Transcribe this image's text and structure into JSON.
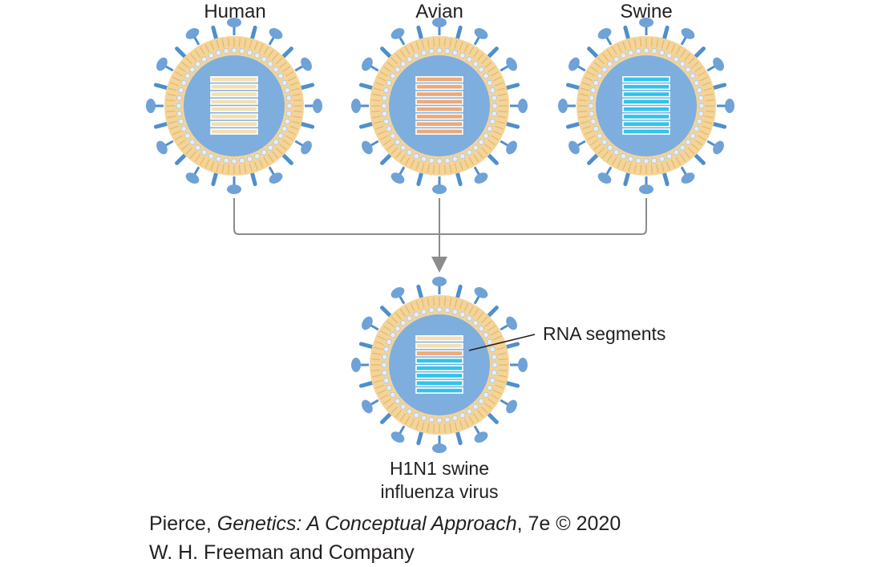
{
  "viruses": [
    {
      "label": "Human",
      "segments": [
        "tan",
        "tan",
        "tan",
        "tan",
        "tan",
        "tan",
        "tan",
        "tan"
      ]
    },
    {
      "label": "Avian",
      "segments": [
        "orange",
        "orange",
        "orange",
        "orange",
        "orange",
        "orange",
        "orange",
        "orange"
      ]
    },
    {
      "label": "Swine",
      "segments": [
        "cyan",
        "cyan",
        "cyan",
        "cyan",
        "cyan",
        "cyan",
        "cyan",
        "cyan"
      ]
    }
  ],
  "result": {
    "label_line1": "H1N1 swine",
    "label_line2": "influenza virus",
    "segments": [
      "tan",
      "tan",
      "orange",
      "cyan",
      "cyan",
      "cyan",
      "cyan",
      "cyan"
    ],
    "callout": "RNA segments"
  },
  "colors": {
    "core": "#7eaedd",
    "spike": "#4f8fcb",
    "spike_head": "#6fa2d6",
    "membrane": "#f3d49a",
    "membrane_line": "#e6b862",
    "pore": "#e9edf3",
    "tan": "#f3dfb1",
    "orange": "#eda978",
    "cyan": "#2ec4ec",
    "connector": "#8c8c8c"
  },
  "credit": {
    "author": "Pierce, ",
    "book": "Genetics: A Conceptual Approach",
    "edition": ", 7e © 2020",
    "publisher": "W. H. Freeman and Company"
  }
}
